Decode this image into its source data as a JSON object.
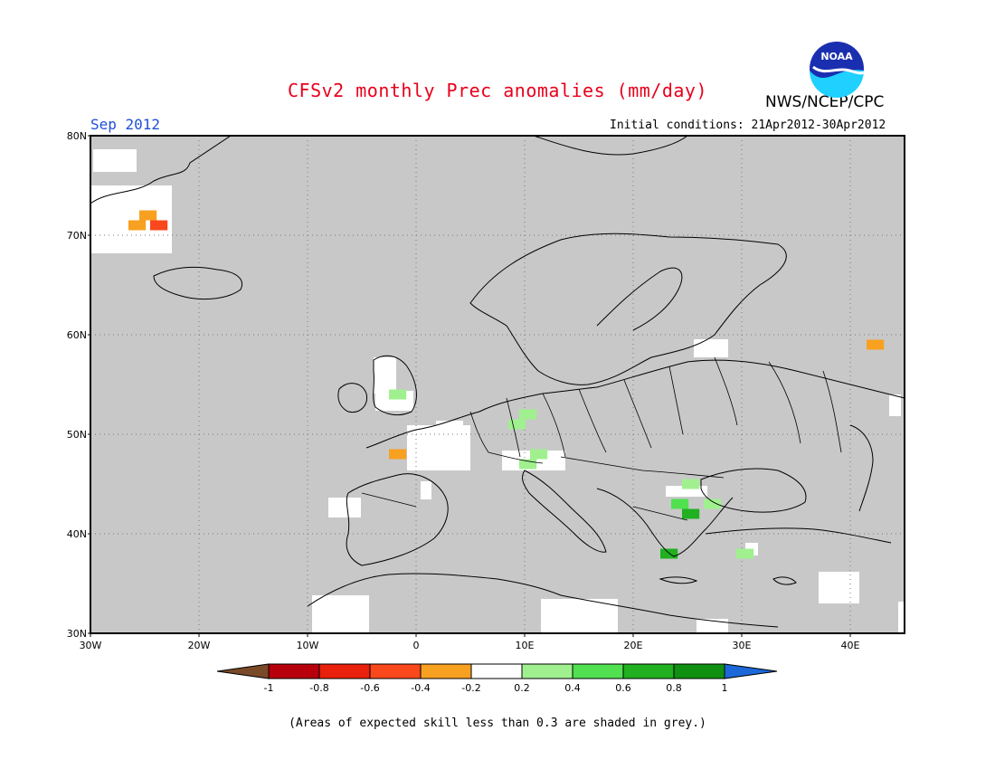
{
  "header": {
    "title": "CFSv2 monthly Prec anomalies (mm/day)",
    "month": "Sep 2012",
    "initial_conditions": "Initial conditions: 21Apr2012-30Apr2012",
    "organization": "NWS/NCEP/CPC",
    "logo_text": "NOAA"
  },
  "map": {
    "region": "Europe",
    "lon_range": [
      -30,
      45
    ],
    "lat_range": [
      30,
      80
    ],
    "lat_ticks": [
      "30N",
      "40N",
      "50N",
      "60N",
      "70N",
      "80N"
    ],
    "lon_ticks": [
      "30W",
      "20W",
      "10W",
      "0",
      "10E",
      "20E",
      "30E",
      "40E"
    ],
    "grid": true,
    "mask_color": "#c8c8c8",
    "anomaly_cells": [
      {
        "lon": -26,
        "lat": 71,
        "cat": "neg_0_4"
      },
      {
        "lon": -25,
        "lat": 72,
        "cat": "neg_0_4"
      },
      {
        "lon": -24,
        "lat": 71,
        "cat": "neg_0_6"
      },
      {
        "lon": -2,
        "lat": 48,
        "cat": "neg_0_4"
      },
      {
        "lon": 42,
        "lat": 59,
        "cat": "neg_0_4"
      },
      {
        "lon": -2,
        "lat": 54,
        "cat": "pos_0_2"
      },
      {
        "lon": 9,
        "lat": 51,
        "cat": "pos_0_2"
      },
      {
        "lon": 10,
        "lat": 52,
        "cat": "pos_0_2"
      },
      {
        "lon": 10,
        "lat": 47,
        "cat": "pos_0_2"
      },
      {
        "lon": 11,
        "lat": 48,
        "cat": "pos_0_2"
      },
      {
        "lon": 25,
        "lat": 45,
        "cat": "pos_0_2"
      },
      {
        "lon": 27,
        "lat": 43,
        "cat": "pos_0_2"
      },
      {
        "lon": 30,
        "lat": 38,
        "cat": "pos_0_2"
      },
      {
        "lon": 24,
        "lat": 43,
        "cat": "pos_0_4"
      },
      {
        "lon": 25,
        "lat": 42,
        "cat": "pos_0_6"
      },
      {
        "lon": 23,
        "lat": 38,
        "cat": "pos_0_6"
      }
    ]
  },
  "legend": {
    "colors": [
      "#7a4a28",
      "#b8000c",
      "#e8200c",
      "#f8481c",
      "#f8a020",
      "#ffffff",
      "#a0f090",
      "#50e050",
      "#20b020",
      "#109010",
      "#1c68d8"
    ],
    "labels": [
      "-1",
      "-0.8",
      "-0.6",
      "-0.4",
      "-0.2",
      "0.2",
      "0.4",
      "0.6",
      "0.8",
      "1"
    ]
  },
  "footnote": "(Areas of expected skill less than 0.3 are shaded in grey.)"
}
